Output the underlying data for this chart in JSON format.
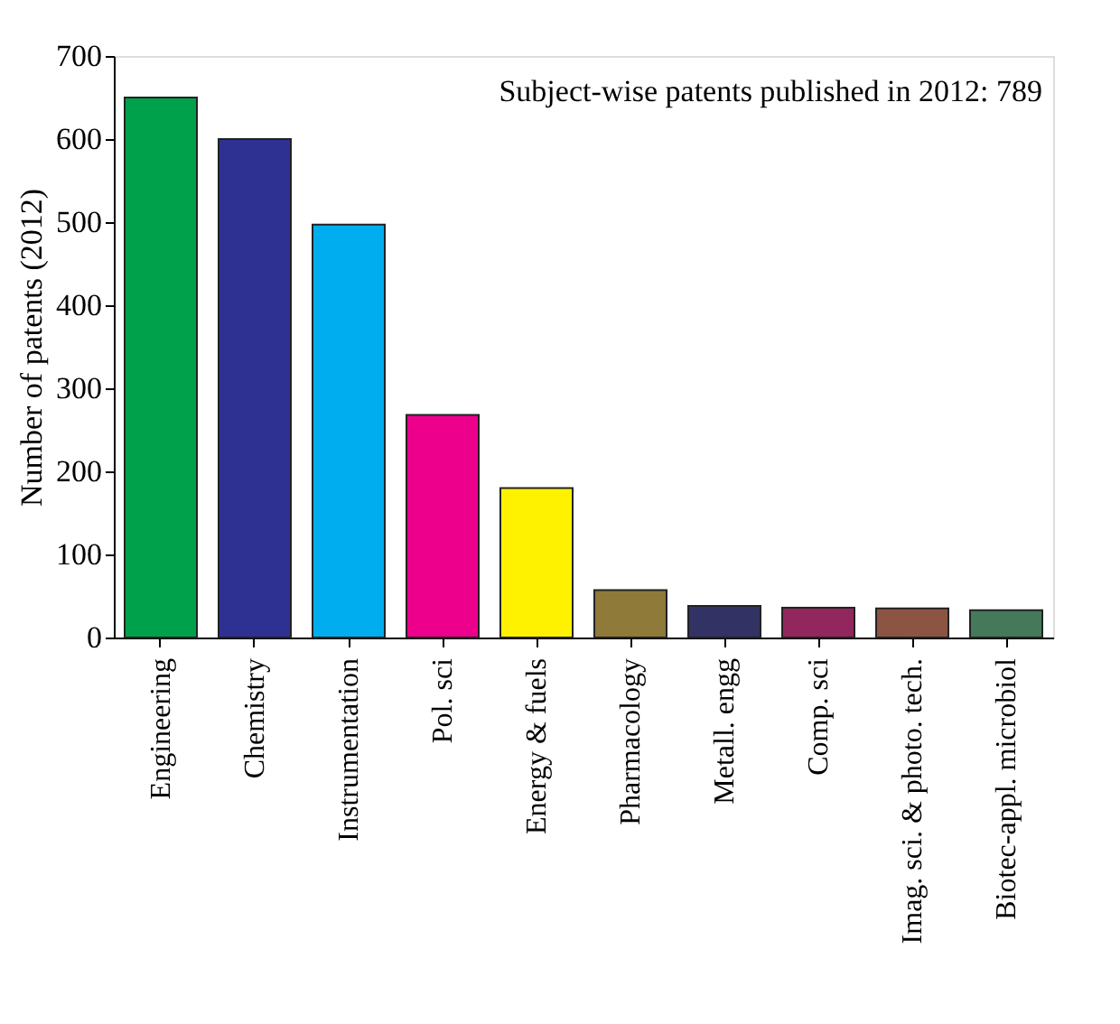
{
  "chart_data": {
    "type": "bar",
    "ylabel": "Number of patents (2012)",
    "annotations": [
      "Subject-wise patents published in 2012: 789"
    ],
    "categories": [
      "Engineering",
      "Chemistry",
      "Instrumentation",
      "Pol. sci",
      "Energy & fuels",
      "Pharmacology",
      "Metall. engg",
      "Comp. sci",
      "Imag. sci. & photo. tech.",
      "Biotec-appl. microbiol"
    ],
    "values": [
      650,
      600,
      497,
      268,
      180,
      57,
      38,
      36,
      35,
      33
    ],
    "colors": [
      "#00a14b",
      "#2e3192",
      "#00aeef",
      "#ec008c",
      "#fff200",
      "#8f7a3a",
      "#323264",
      "#92275d",
      "#8c5443",
      "#447a5a"
    ],
    "ylim": [
      0,
      700
    ],
    "yticks": [
      0,
      100,
      200,
      300,
      400,
      500,
      600,
      700
    ],
    "grid": false
  }
}
